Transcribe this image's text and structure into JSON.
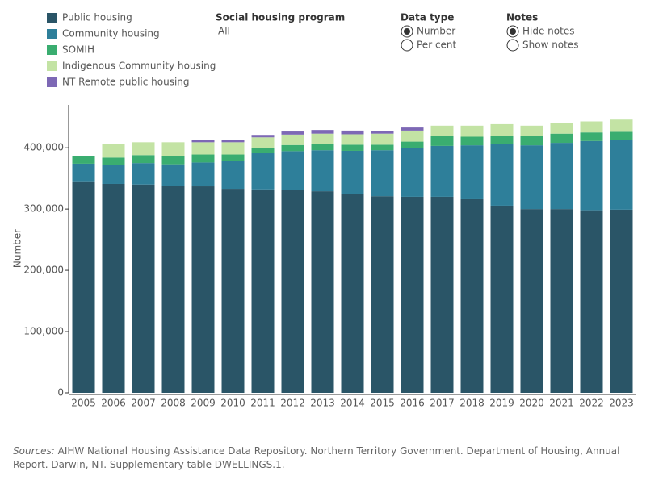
{
  "chart_data": {
    "type": "stacked_bar",
    "y_label": "Number",
    "categories": [
      "2005",
      "2006",
      "2007",
      "2008",
      "2009",
      "2010",
      "2011",
      "2012",
      "2013",
      "2014",
      "2015",
      "2016",
      "2017",
      "2018",
      "2019",
      "2020",
      "2021",
      "2022",
      "2023"
    ],
    "series": [
      {
        "name": "Public housing",
        "color": "#2a5567",
        "values": [
          344000,
          341000,
          340000,
          338000,
          337000,
          333000,
          332000,
          330500,
          329000,
          324000,
          321000,
          320000,
          320000,
          316000,
          305500,
          300000,
          300000,
          298000,
          299000
        ]
      },
      {
        "name": "Community housing",
        "color": "#2e7f9a",
        "values": [
          30000,
          31000,
          35000,
          35000,
          39000,
          45000,
          59000,
          64000,
          67000,
          71000,
          75000,
          80000,
          83000,
          88000,
          100000,
          104000,
          108000,
          113000,
          114000
        ]
      },
      {
        "name": "SOMIH",
        "color": "#3aad70",
        "values": [
          13000,
          12000,
          13000,
          13000,
          13000,
          11000,
          8000,
          10000,
          10000,
          10000,
          9000,
          10000,
          16000,
          14000,
          14000,
          15000,
          15000,
          14000,
          13000
        ]
      },
      {
        "name": "Indigenous Community housing",
        "color": "#c3e3a4",
        "values": [
          null,
          22000,
          21000,
          23000,
          20000,
          20000,
          18000,
          17000,
          17000,
          17000,
          18000,
          18000,
          17000,
          18000,
          19000,
          17000,
          17000,
          18000,
          20000
        ]
      },
      {
        "name": "NT Remote public housing",
        "color": "#7d68b5",
        "values": [
          null,
          null,
          null,
          null,
          4000,
          4000,
          4000,
          5000,
          6000,
          6000,
          4000,
          5000,
          null,
          null,
          null,
          null,
          null,
          null,
          null
        ]
      }
    ],
    "ylim": [
      0,
      470000
    ],
    "yticks": [
      0,
      {
        "value": 100000,
        "label": "100,000"
      },
      {
        "value": 200000,
        "label": "200,000"
      },
      {
        "value": 300000,
        "label": "300,000"
      },
      {
        "value": 400000,
        "label": "400,000"
      }
    ],
    "grid": false
  },
  "filters": {
    "program": {
      "title": "Social housing program",
      "value": "All"
    },
    "data_type": {
      "title": "Data type",
      "options": [
        "Number",
        "Per cent"
      ],
      "selected": "Number"
    },
    "notes": {
      "title": "Notes",
      "options": [
        "Hide notes",
        "Show notes"
      ],
      "selected": "Hide notes"
    }
  },
  "footer": {
    "label": "Sources:",
    "text": "AIHW National Housing Assistance Data Repository. Northern Territory Government. Department of Housing, Annual Report. Darwin, NT.  Supplementary table DWELLINGS.1."
  }
}
